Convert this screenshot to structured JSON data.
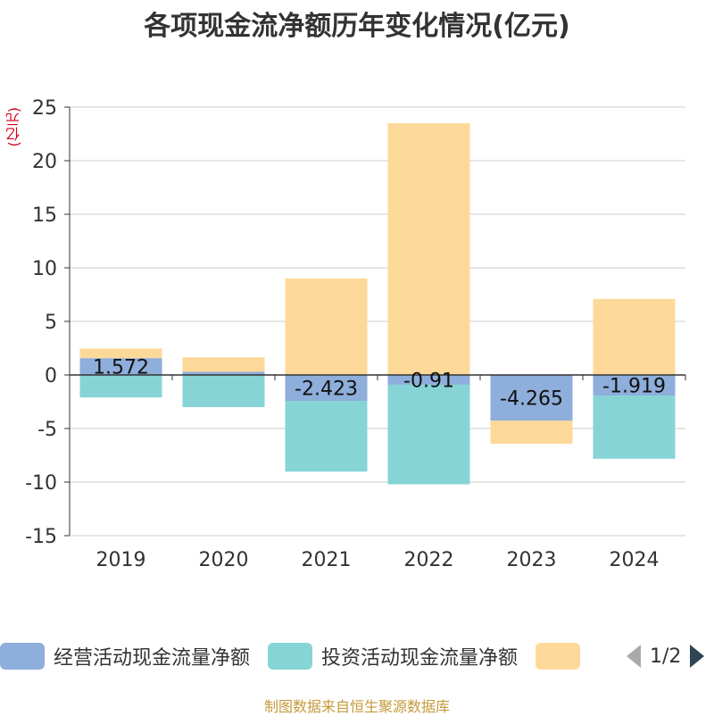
{
  "title": "各项现金流净额历年变化情况(亿元)",
  "unit": "(亿元)",
  "footer": "制图数据来自恒生聚源数据库",
  "legend": {
    "pager_text": "1/2",
    "items": [
      {
        "label": "经营活动现金流量净额",
        "color": "#8eaedb"
      },
      {
        "label": "投资活动现金流量净额",
        "color": "#87d4d6"
      },
      {
        "label": "",
        "color": "#fdd999"
      }
    ]
  },
  "chart_data": {
    "type": "bar",
    "stacked": true,
    "categories": [
      "2019",
      "2020",
      "2021",
      "2022",
      "2023",
      "2024"
    ],
    "ylim": [
      -15,
      25
    ],
    "yticks": [
      25,
      20,
      15,
      10,
      5,
      0,
      -5,
      -10,
      -15
    ],
    "grid": true,
    "legend_position": "bottom",
    "series": [
      {
        "name": "经营活动现金流量净额",
        "color": "#8eaedb",
        "values": [
          1.572,
          0.3,
          -2.423,
          -0.91,
          -4.265,
          -1.919
        ],
        "labels": [
          "1.572",
          "",
          "-2.423",
          "-0.91",
          "-4.265",
          "-1.919"
        ]
      },
      {
        "name": "投资活动现金流量净额",
        "color": "#87d4d6",
        "values": [
          -2.1,
          -3.0,
          -6.6,
          -9.3,
          0,
          -5.9
        ]
      },
      {
        "name": "",
        "color": "#fdd999",
        "values": [
          0.9,
          1.35,
          9.0,
          23.5,
          -2.15,
          7.1
        ]
      }
    ]
  }
}
